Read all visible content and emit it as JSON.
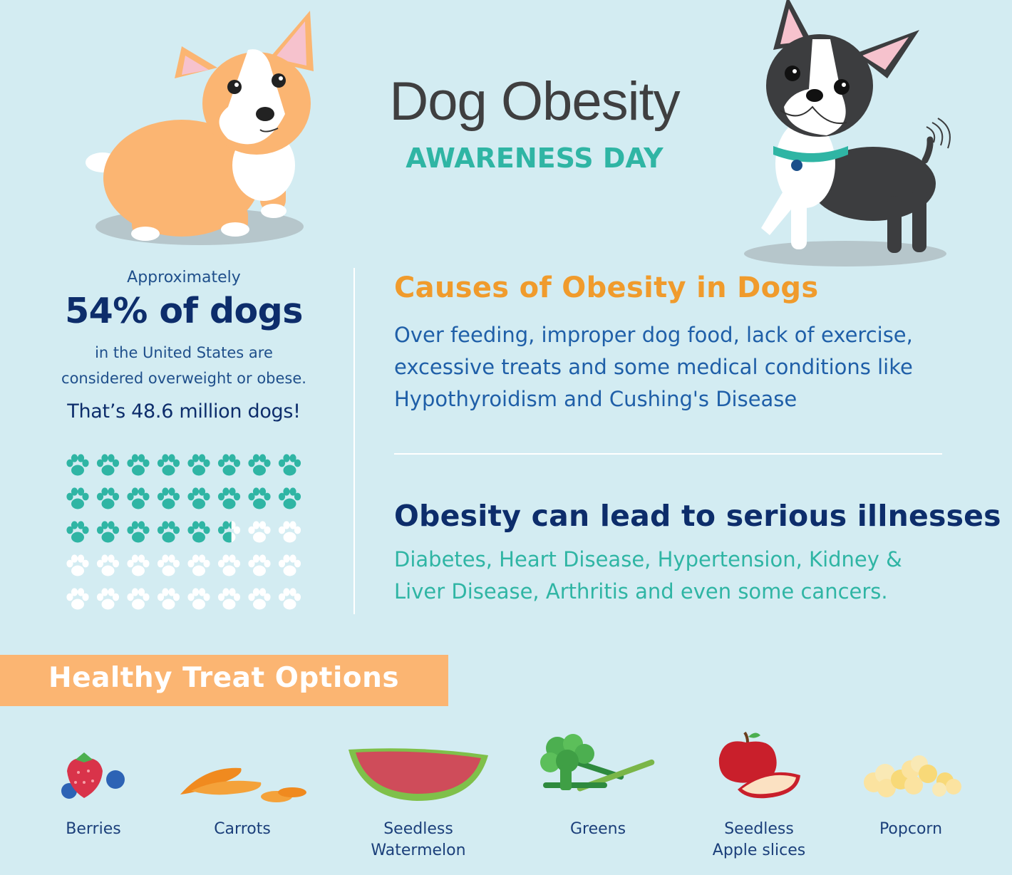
{
  "header": {
    "title": "Dog Obesity",
    "subtitle": "AWARENESS DAY"
  },
  "stats": {
    "approx": "Approximately",
    "percent": "54% of dogs",
    "line1": "in the United States are",
    "line2": "considered overweight or obese.",
    "total": "That’s 48.6 million dogs!",
    "paw_grid": {
      "columns": 8,
      "rows": 5,
      "filled_fraction": 0.54
    }
  },
  "causes": {
    "heading": "Causes of Obesity in Dogs",
    "lines": [
      "Over feeding, improper dog food, lack of exercise,",
      "excessive treats and some medical conditions like",
      "Hypothyroidism and Cushing's Disease"
    ]
  },
  "illness": {
    "heading": "Obesity can lead to serious illnesses",
    "lines": [
      "Diabetes, Heart Disease, Hypertension, Kidney &",
      "Liver Disease, Arthritis and even some cancers."
    ]
  },
  "treats": {
    "title": "Healthy Treat Options",
    "items": [
      {
        "icon": "berries-icon",
        "lines": [
          "Berries"
        ]
      },
      {
        "icon": "carrots-icon",
        "lines": [
          "Carrots"
        ]
      },
      {
        "icon": "watermelon-icon",
        "lines": [
          "Seedless",
          "Watermelon"
        ]
      },
      {
        "icon": "greens-icon",
        "lines": [
          "Greens"
        ]
      },
      {
        "icon": "apple-icon",
        "lines": [
          "Seedless",
          "Apple slices"
        ]
      },
      {
        "icon": "popcorn-icon",
        "lines": [
          "Popcorn"
        ]
      }
    ]
  },
  "colors": {
    "background": "#d3ecf2",
    "teal": "#2fb5a4",
    "orange": "#f09b2c",
    "navy": "#0d2d6b",
    "blue": "#1f5fa8",
    "banner": "#fbb572",
    "paw_filled": "#2fb5a4",
    "paw_empty": "#ffffff"
  }
}
